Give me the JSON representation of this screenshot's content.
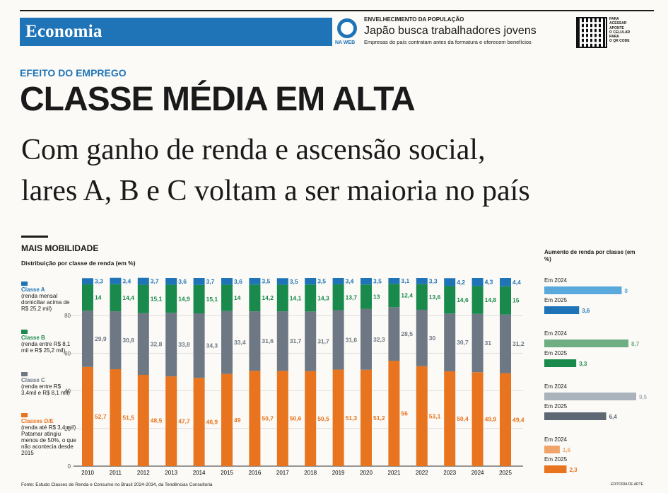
{
  "section": {
    "name": "Economia"
  },
  "promo": {
    "web_label": "NA WEB",
    "kicker": "ENVELHECIMENTO DA POPULAÇÃO",
    "title": "Japão busca trabalhadores jovens",
    "subtitle": "Empresas do país contratam antes da formatura e oferecem benefícios",
    "qr_text": [
      "PARA",
      "ACESSAR",
      "APONTE",
      "O CELULAR",
      "PARA",
      "O QR CODE"
    ]
  },
  "article": {
    "kicker": "EFEITO DO EMPREGO",
    "headline": "CLASSE MÉDIA EM ALTA",
    "deck": [
      "Com ganho de renda e ascensão social,",
      "lares A, B e C voltam a ser maioria no país"
    ]
  },
  "graphic": {
    "title": "MAIS MOBILIDADE",
    "chart_subtitle": "Distribuição por classe de renda (em %)",
    "source": "Fonte: Estudo Classes de Renda e Consumo no Brasil 2024-2034, da Tendências Consultoria",
    "credit": "EDITORIA DE ARTE"
  },
  "chart_data": [
    {
      "type": "bar",
      "stacked": true,
      "title": "Distribuição por classe de renda (em %)",
      "ylim": [
        0,
        100
      ],
      "yticks": [
        0,
        20,
        40,
        60,
        80
      ],
      "categories": [
        "2010",
        "2011",
        "2012",
        "2013",
        "2014",
        "2015",
        "2016",
        "2017",
        "2018",
        "2019",
        "2020",
        "2021",
        "2022",
        "2023",
        "2024",
        "2025"
      ],
      "series": [
        {
          "name": "Classes D/E",
          "desc": "(renda até R$ 3,4 mil) Patamar atingiu menos de 50%, o que não acontecia desde 2015",
          "color": "#e8741f",
          "values": [
            52.7,
            51.5,
            48.5,
            47.7,
            46.9,
            49,
            50.7,
            50.6,
            50.5,
            51.3,
            51.2,
            56,
            53.1,
            50.4,
            49.9,
            49.4
          ]
        },
        {
          "name": "Classe C",
          "desc": "(renda entre R$ 3,4mil e R$ 8,1 mil)",
          "color": "#6d7884",
          "values": [
            29.9,
            30.8,
            32.8,
            33.8,
            34.3,
            33.4,
            31.6,
            31.7,
            31.7,
            31.6,
            32.3,
            28.5,
            30,
            30.7,
            31,
            31.2
          ]
        },
        {
          "name": "Classe B",
          "desc": "(renda entre R$ 8,1 mil e R$ 25,2 mil)",
          "color": "#1a8a4c",
          "values": [
            14,
            14.4,
            15.1,
            14.9,
            15.1,
            14,
            14.2,
            14.1,
            14.3,
            13.7,
            13,
            12.4,
            13.6,
            14.6,
            14.8,
            15
          ]
        },
        {
          "name": "Classe A",
          "desc": "(renda mensal domiciliar acima de R$ 25,2 mil)",
          "color": "#1f74b8",
          "values": [
            3.3,
            3.4,
            3.7,
            3.6,
            3.7,
            3.6,
            3.5,
            3.5,
            3.5,
            3.4,
            3.5,
            3.1,
            3.3,
            4.2,
            4.3,
            4.4
          ]
        }
      ]
    },
    {
      "type": "bar",
      "orientation": "horizontal",
      "title": "Aumento de renda por classe (em %)",
      "groups": [
        {
          "class": "Classe A",
          "bars": [
            {
              "label": "Em 2024",
              "value": 8,
              "display": "8",
              "color": "#5aa9dd"
            },
            {
              "label": "Em 2025",
              "value": 3.6,
              "display": "3,6",
              "color": "#1f74b8"
            }
          ]
        },
        {
          "class": "Classe B",
          "bars": [
            {
              "label": "Em 2024",
              "value": 8.7,
              "display": "8,7",
              "color": "#6fae82"
            },
            {
              "label": "Em 2025",
              "value": 3.3,
              "display": "3,3",
              "color": "#1a8a4c"
            }
          ]
        },
        {
          "class": "Classe C",
          "bars": [
            {
              "label": "Em 2024",
              "value": 9.5,
              "display": "9,5",
              "color": "#aab2bb"
            },
            {
              "label": "Em 2025",
              "value": 6.4,
              "display": "6,4",
              "color": "#5d6874"
            }
          ]
        },
        {
          "class": "Classes D/E",
          "bars": [
            {
              "label": "Em 2024",
              "value": 1.6,
              "display": "1,6",
              "color": "#f0a46a"
            },
            {
              "label": "Em 2025",
              "value": 2.3,
              "display": "2,3",
              "color": "#e8741f"
            }
          ]
        }
      ]
    }
  ]
}
